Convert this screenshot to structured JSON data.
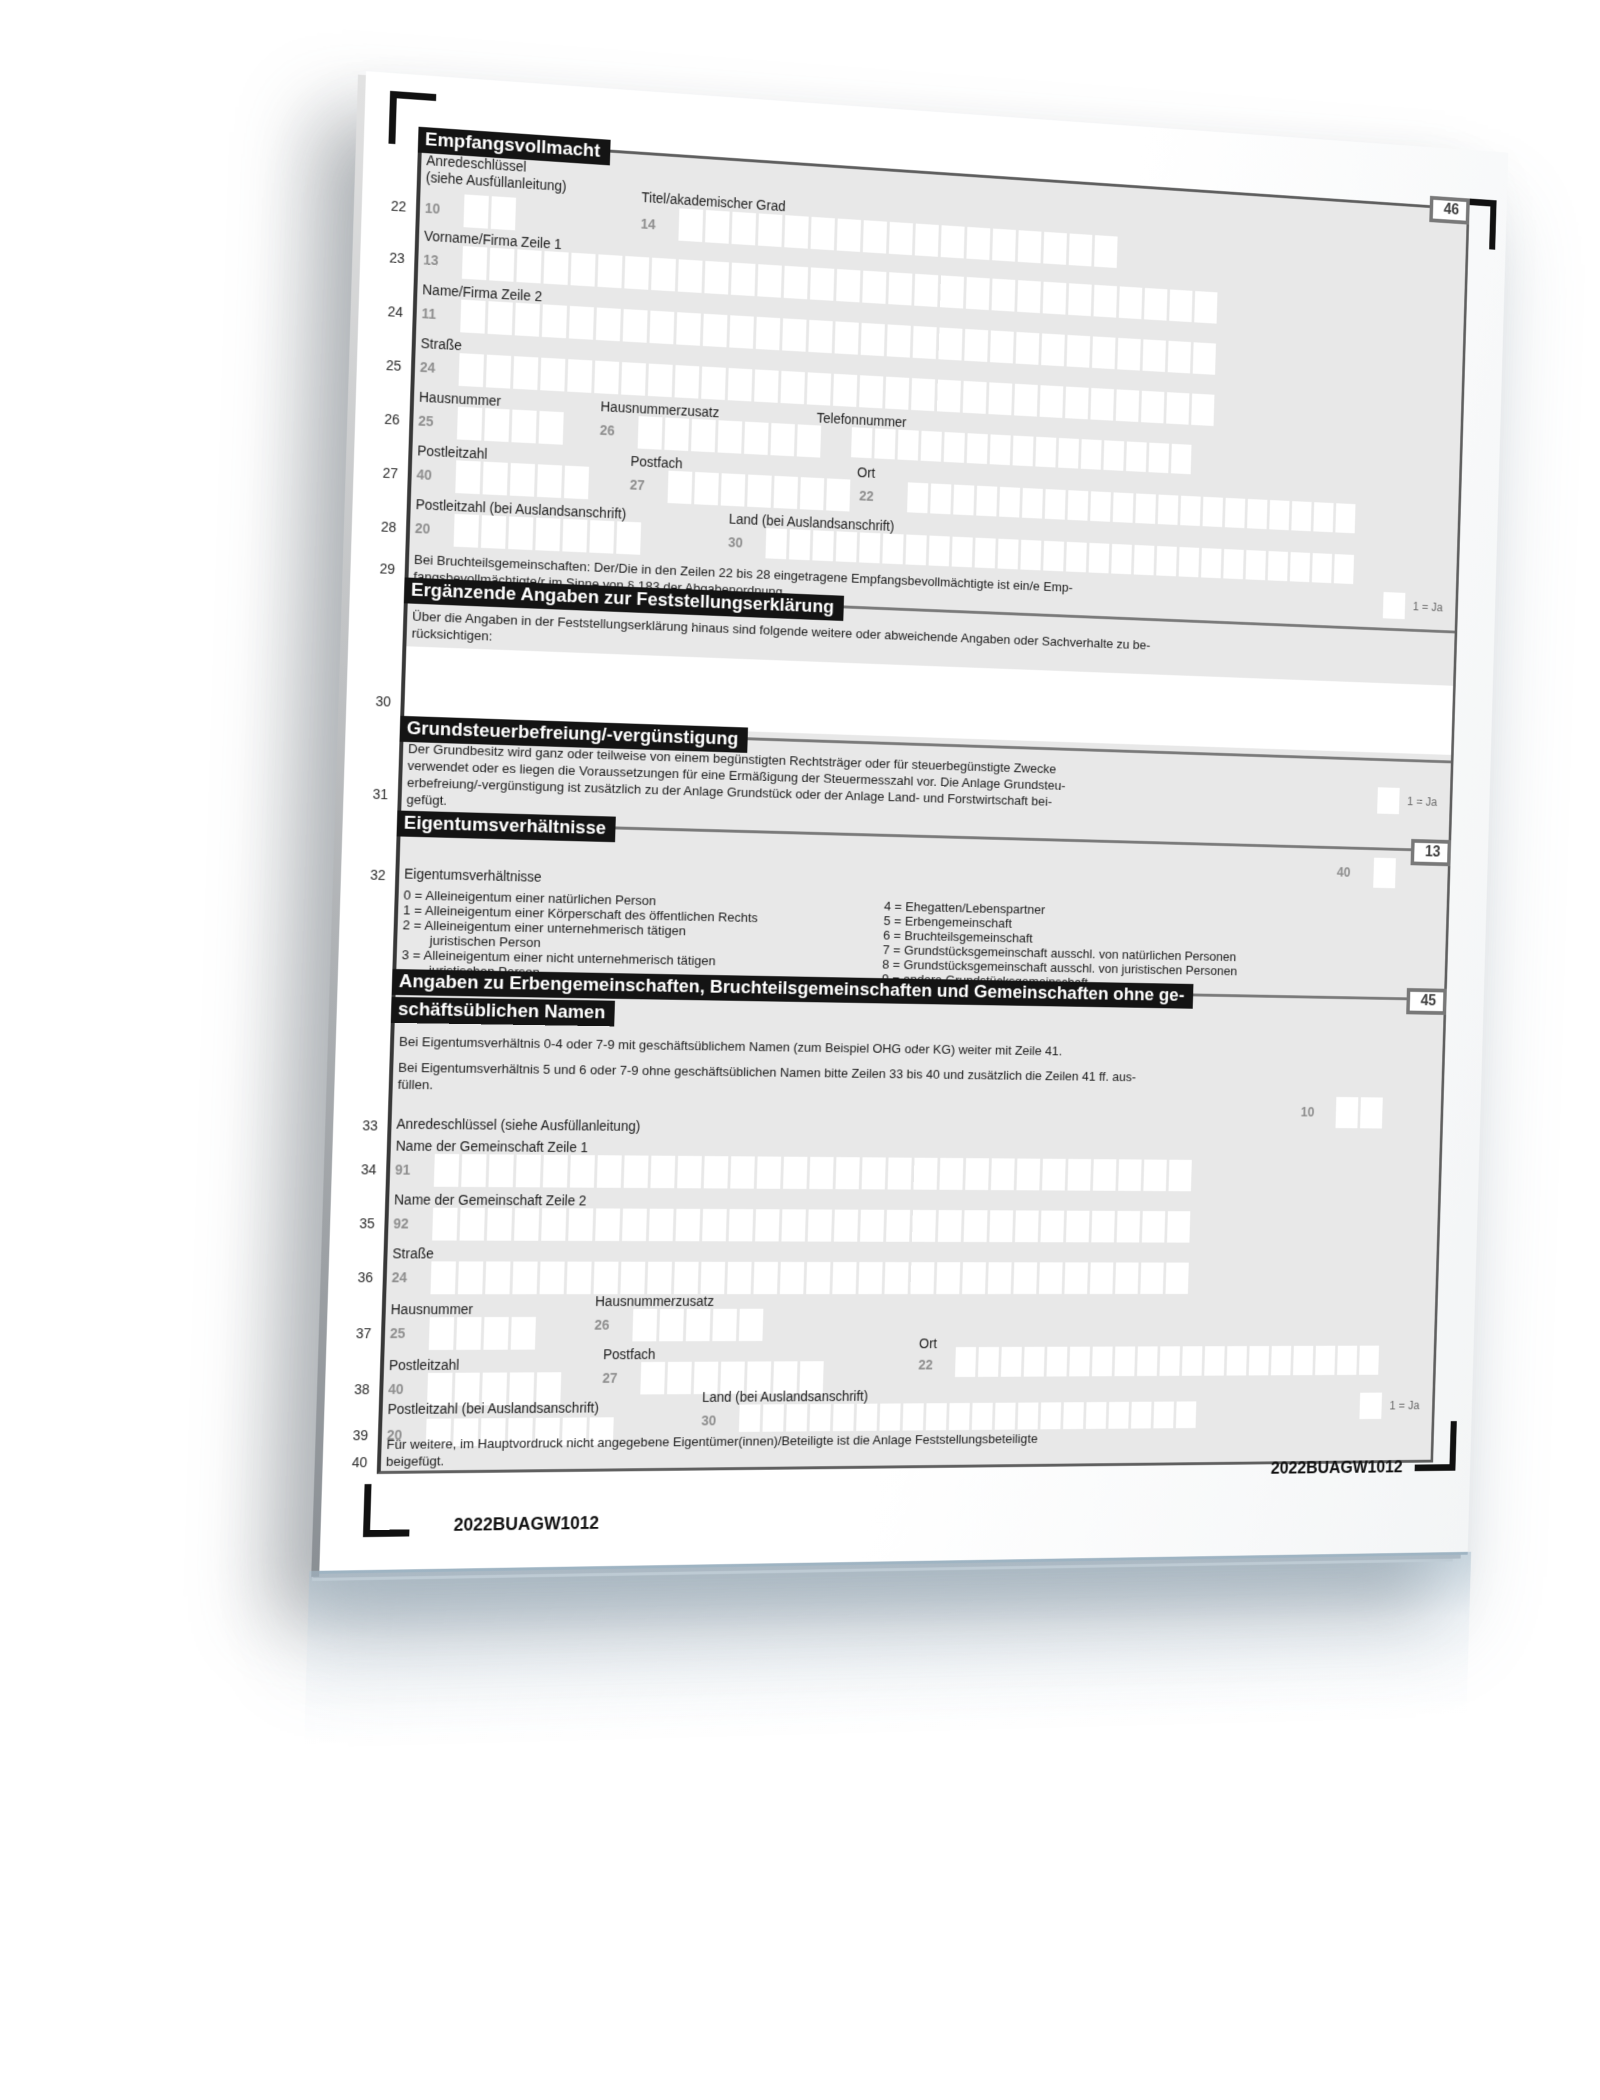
{
  "colors": {
    "header_bar": "#141414",
    "form_bg": "#e8e8e8",
    "border_gray": "#6f6f6f",
    "cell_white": "#ffffff"
  },
  "footer": {
    "code_right": "2022BUAGW1012",
    "code_left": "2022BUAGW1012"
  },
  "common": {
    "ja_label": "1 = Ja"
  },
  "s1": {
    "title": "Empfangsvollmacht",
    "badge": "46",
    "anrede_l1": "Anredeschlüssel",
    "anrede_l2": "(siehe Ausfüllanleitung)",
    "titel_label": "Titel/akademischer Grad",
    "row22": "22",
    "f10": "10",
    "f14": "14",
    "vorname_label": "Vorname/Firma Zeile 1",
    "row23": "23",
    "f13": "13",
    "name2_label": "Name/Firma Zeile 2",
    "row24": "24",
    "f11": "11",
    "strasse_label": "Straße",
    "row25": "25",
    "f24": "24",
    "hausnummer_label": "Hausnummer",
    "zusatz_label": "Hausnummerzusatz",
    "telefon_label": "Telefonnummer",
    "row26": "26",
    "f25": "25",
    "f26": "26",
    "plz_label": "Postleitzahl",
    "postfach_label": "Postfach",
    "ort_label": "Ort",
    "row27": "27",
    "f40": "40",
    "f27": "27",
    "f22": "22",
    "plz_ausland_label": "Postleitzahl (bei Auslandsanschrift)",
    "land_label": "Land (bei Auslandsanschrift)",
    "row28": "28",
    "f20": "20",
    "f30": "30",
    "row29": "29",
    "row29_lines": [
      "Bei Bruchteilsgemeinschaften: Der/Die in den Zeilen 22 bis 28 eingetragene Empfangsbevollmächtigte ist ein/e Emp-",
      "fangsbevollmächtigte/r im Sinne von § 183 der Abgabenordnung."
    ]
  },
  "s2": {
    "title": "Ergänzende Angaben zur Feststellungserklärung",
    "row30": "30",
    "lines": [
      "Über die Angaben in der Feststellungserklärung hinaus sind folgende weitere oder abweichende Angaben oder Sachverhalte zu be-",
      "rücksichtigen:"
    ]
  },
  "s3": {
    "title": "Grundsteuerbefreiung/-vergünstigung",
    "row31": "31",
    "lines": [
      "Der Grundbesitz wird ganz oder teilweise von einem begünstigten Rechtsträger oder für steuerbegünstigte Zwecke",
      "verwendet oder es liegen die Voraussetzungen für eine Ermäßigung der Steuermesszahl vor. Die Anlage Grundsteu-",
      "erbefreiung/-vergünstigung ist zusätzlich zu der Anlage Grundstück oder der Anlage Land- und Forstwirtschaft bei-",
      "gefügt."
    ]
  },
  "s4": {
    "title": "Eigentumsverhältnisse",
    "badge": "13",
    "f40_label": "40",
    "row32": "32",
    "row32_label": "Eigentumsverhältnisse",
    "codes_left": [
      "0 = Alleineigentum einer natürlichen Person",
      "1 = Alleineigentum einer Körperschaft des öffentlichen Rechts",
      "2 = Alleineigentum einer unternehmerisch tätigen",
      "juristischen Person",
      "3 = Alleineigentum einer nicht unternehmerisch tätigen",
      "juristischen Person"
    ],
    "codes_right": [
      "4 = Ehegatten/Lebenspartner",
      "5 = Erbengemeinschaft",
      "6 = Bruchteilsgemeinschaft",
      "7 = Grundstücksgemeinschaft ausschl. von natürlichen Personen",
      "8 = Grundstücksgemeinschaft ausschl. von juristischen Personen",
      "9 = andere Grundstücksgemeinschaft"
    ]
  },
  "s5": {
    "title_l1": "Angaben zu Erbengemeinschaften, Bruchteilsgemeinschaften und Gemeinschaften ohne ge-",
    "title_l2": "schäftsüblichen Namen",
    "badge": "45",
    "para1": "Bei Eigentumsverhältnis 0-4 oder 7-9 mit geschäftsüblichem Namen (zum Beispiel OHG oder KG) weiter mit Zeile 41.",
    "para2_lines": [
      "Bei Eigentumsverhältnis 5 und 6 oder 7-9 ohne geschäftsüblichen Namen bitte Zeilen 33 bis 40 und zusätzlich die Zeilen 41 ff. aus-",
      "füllen."
    ],
    "f10_label": "10",
    "row33": "33",
    "anrede_label": "Anredeschlüssel (siehe Ausfüllanleitung)",
    "gem1_label": "Name der Gemeinschaft Zeile 1",
    "row34": "34",
    "f91": "91",
    "gem2_label": "Name der Gemeinschaft Zeile 2",
    "row35": "35",
    "f92": "92",
    "strasse_label": "Straße",
    "row36": "36",
    "f24": "24",
    "hausnummer_label": "Hausnummer",
    "zusatz_label": "Hausnummerzusatz",
    "row37": "37",
    "f25": "25",
    "f26": "26",
    "plz_label": "Postleitzahl",
    "postfach_label": "Postfach",
    "ort_label": "Ort",
    "row38": "38",
    "f40": "40",
    "f27": "27",
    "f22": "22",
    "plz_ausland_label": "Postleitzahl (bei Auslandsanschrift)",
    "land_label": "Land (bei Auslandsanschrift)",
    "row39": "39",
    "f20": "20",
    "f30": "30",
    "row40": "40",
    "fuer_lines": [
      "Für weitere, im Hauptvordruck nicht angegebene Eigentümer(innen)/Beteiligte ist die Anlage Feststellungsbeteiligte",
      "beigefügt."
    ]
  },
  "counts": {
    "f10": 2,
    "f14": 17,
    "f13": 29,
    "f11": 29,
    "f24": 29,
    "f25": 4,
    "f26": 7,
    "tel": 15,
    "f40": 5,
    "f27": 7,
    "ort": 20,
    "f20": 7,
    "land": 26,
    "f91": 29,
    "f92": 29,
    "f24b": 29,
    "f25b": 4,
    "f26b": 5,
    "f40b": 5,
    "f27b": 7,
    "ortb": 19,
    "f20b": 7,
    "landb": 20,
    "f10b": 2,
    "single": 1
  }
}
